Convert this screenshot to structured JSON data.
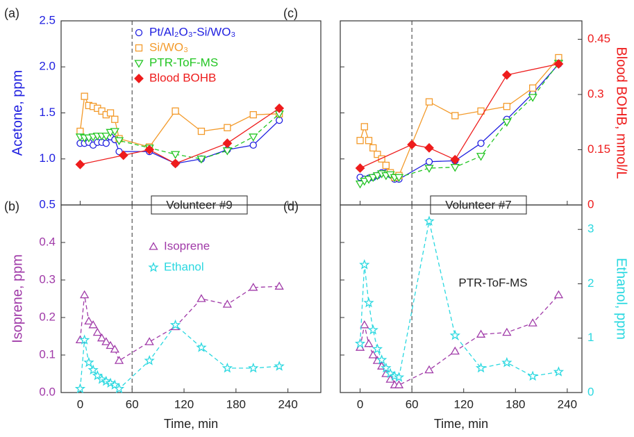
{
  "chart_data": [
    {
      "type": "line",
      "label": "(a)",
      "ylabel": "Acetone, ppm",
      "ycolor": "#1f1fe0",
      "xlim": [
        -22,
        278
      ],
      "xticks": [
        0,
        60,
        120,
        180,
        240
      ],
      "show_xtick_labels": false,
      "ylim": [
        0.5,
        2.5
      ],
      "yticks": [
        0.5,
        {
          "value": 1,
          "label": "1.0"
        },
        1.5,
        {
          "value": 2,
          "label": "2.0"
        },
        2.5
      ],
      "show_ytick_labels": true,
      "vline_x": 60,
      "box_annotation": "Volunteer #9",
      "legend": "upper center",
      "series": [
        {
          "name": "Pt/Al₂O₃-Si/WO₃",
          "color": "#1f1fe0",
          "marker": "circle",
          "dashed": false,
          "x": [
            0,
            5,
            10,
            15,
            20,
            25,
            30,
            35,
            40,
            45,
            80,
            110,
            140,
            170,
            200,
            230
          ],
          "values": [
            1.17,
            1.17,
            1.18,
            1.15,
            1.18,
            1.18,
            1.17,
            1.24,
            1.21,
            1.08,
            1.08,
            0.95,
            1.0,
            1.1,
            1.15,
            1.42
          ]
        },
        {
          "name": "Si/WO₃",
          "color": "#f39a2a",
          "marker": "square",
          "dashed": false,
          "x": [
            0,
            5,
            10,
            15,
            20,
            25,
            30,
            35,
            40,
            45,
            80,
            110,
            140,
            170,
            200,
            230
          ],
          "values": [
            1.3,
            1.68,
            1.58,
            1.57,
            1.55,
            1.52,
            1.48,
            1.5,
            1.43,
            1.22,
            1.13,
            1.52,
            1.3,
            1.34,
            1.48,
            1.49
          ]
        },
        {
          "name": "PTR-ToF-MS",
          "color": "#22c522",
          "marker": "triangle-down",
          "dashed": true,
          "x": [
            0,
            5,
            10,
            15,
            20,
            25,
            30,
            35,
            40,
            45,
            80,
            110,
            140,
            170,
            200,
            230
          ],
          "values": [
            1.24,
            1.23,
            1.23,
            1.24,
            1.25,
            1.25,
            1.25,
            1.29,
            1.3,
            1.2,
            1.12,
            1.05,
            1.0,
            1.09,
            1.24,
            1.49
          ]
        },
        {
          "name": "Blood BOHB",
          "color": "#ee1c1c",
          "marker": "diamond",
          "dashed": false,
          "x": [
            0,
            50,
            80,
            110,
            170,
            230
          ],
          "values": [
            0.94,
            1.04,
            1.1,
            0.95,
            1.17,
            1.55
          ]
        }
      ]
    },
    {
      "type": "line",
      "label": "(b)",
      "xlabel": "Time, min",
      "ylabel": "Isoprene, ppm",
      "ycolor": "#a03aa8",
      "xlim": [
        -22,
        278
      ],
      "xticks": [
        0,
        60,
        120,
        180,
        240
      ],
      "show_xtick_labels": true,
      "ylim": [
        0,
        0.5
      ],
      "yticks": [
        {
          "value": 0,
          "label": "0.0"
        },
        0.1,
        0.2,
        0.3,
        0.4
      ],
      "show_ytick_labels": true,
      "vline_x": 60,
      "legend": "upper center",
      "series": [
        {
          "name": "Isoprene",
          "color": "#a03aa8",
          "marker": "triangle-up",
          "dashed": true,
          "x": [
            0,
            5,
            10,
            15,
            20,
            25,
            30,
            35,
            40,
            45,
            80,
            110,
            140,
            170,
            200,
            230
          ],
          "values": [
            0.14,
            0.26,
            0.19,
            0.18,
            0.16,
            0.145,
            0.135,
            0.125,
            0.115,
            0.085,
            0.135,
            0.175,
            0.25,
            0.235,
            0.28,
            0.283
          ]
        },
        {
          "name": "Ethanol",
          "color": "#2ad8e0",
          "marker": "star",
          "dashed": true,
          "x": [
            0,
            5,
            10,
            15,
            20,
            25,
            30,
            35,
            40,
            45,
            80,
            110,
            140,
            170,
            200,
            230
          ],
          "values": [
            0.01,
            0.14,
            0.08,
            0.06,
            0.045,
            0.035,
            0.03,
            0.025,
            0.02,
            0.01,
            0.085,
            0.18,
            0.12,
            0.065,
            0.065,
            0.07
          ]
        }
      ]
    },
    {
      "type": "line",
      "label": "(c)",
      "y2label": "Blood BOHB, mmol/L",
      "y2color": "#ee1c1c",
      "xlim": [
        -23,
        257
      ],
      "xticks": [
        0,
        60,
        120,
        180,
        240
      ],
      "show_xtick_labels": false,
      "ylim": [
        0.5,
        2.5
      ],
      "yticks": [
        0.5,
        1,
        1.5,
        2,
        2.5
      ],
      "show_ytick_labels": false,
      "y2lim": [
        0,
        0.5
      ],
      "y2ticks": [
        0,
        0.15,
        0.3,
        0.45
      ],
      "vline_x": 60,
      "box_annotation": "Volunteer #7",
      "series": [
        {
          "name": "Pt/Al₂O₃-Si/WO₃",
          "color": "#1f1fe0",
          "marker": "circle",
          "dashed": false,
          "x": [
            0,
            5,
            10,
            15,
            20,
            25,
            30,
            35,
            40,
            45,
            80,
            110,
            140,
            170,
            200,
            230
          ],
          "values": [
            0.8,
            0.78,
            0.79,
            0.8,
            0.82,
            0.85,
            0.85,
            0.83,
            0.78,
            0.78,
            0.97,
            0.98,
            1.17,
            1.43,
            1.71,
            2.03
          ]
        },
        {
          "name": "Si/WO₃",
          "color": "#f39a2a",
          "marker": "square",
          "dashed": false,
          "x": [
            0,
            5,
            10,
            15,
            20,
            25,
            30,
            35,
            40,
            45,
            80,
            110,
            140,
            170,
            200,
            230
          ],
          "values": [
            1.2,
            1.35,
            1.2,
            1.12,
            1.05,
            1.0,
            0.93,
            0.85,
            0.8,
            0.82,
            1.62,
            1.47,
            1.52,
            1.57,
            1.77,
            2.1
          ]
        },
        {
          "name": "PTR-ToF-MS",
          "color": "#22c522",
          "marker": "triangle-down",
          "dashed": true,
          "x": [
            0,
            5,
            10,
            15,
            20,
            25,
            30,
            35,
            40,
            45,
            80,
            110,
            140,
            170,
            200,
            230
          ],
          "values": [
            0.73,
            0.76,
            0.78,
            0.8,
            0.82,
            0.84,
            0.82,
            0.83,
            0.8,
            0.8,
            0.9,
            0.91,
            1.03,
            1.4,
            1.67,
            2.04
          ]
        },
        {
          "name": "Blood BOHB",
          "color": "#ee1c1c",
          "marker": "diamond",
          "dashed": false,
          "axis": "y2",
          "x": [
            0,
            60,
            80,
            110,
            170,
            230
          ],
          "values": [
            0.1,
            0.164,
            0.155,
            0.123,
            0.353,
            0.383
          ]
        }
      ]
    },
    {
      "type": "line",
      "label": "(d)",
      "xlabel": "Time, min",
      "y2label": "Ethanol, ppm",
      "y2color": "#2ad8e0",
      "xlim": [
        -23,
        257
      ],
      "xticks": [
        0,
        60,
        120,
        180,
        240
      ],
      "show_xtick_labels": true,
      "ylim": [
        0,
        0.5
      ],
      "yticks": [
        0,
        0.1,
        0.2,
        0.3,
        0.4
      ],
      "show_ytick_labels": false,
      "y2lim": [
        0,
        3.45
      ],
      "y2ticks": [
        0,
        1,
        2,
        3
      ],
      "vline_x": 60,
      "annotation": "PTR-ToF-MS",
      "series": [
        {
          "name": "Isoprene",
          "color": "#a03aa8",
          "marker": "triangle-up",
          "dashed": true,
          "x": [
            0,
            5,
            10,
            15,
            20,
            25,
            30,
            35,
            40,
            45,
            80,
            110,
            140,
            170,
            200,
            230
          ],
          "values": [
            0.12,
            0.18,
            0.13,
            0.1,
            0.085,
            0.07,
            0.05,
            0.035,
            0.02,
            0.02,
            0.06,
            0.11,
            0.155,
            0.16,
            0.185,
            0.26
          ]
        },
        {
          "name": "Ethanol",
          "color": "#2ad8e0",
          "marker": "star",
          "dashed": true,
          "axis": "y2",
          "x": [
            0,
            5,
            10,
            15,
            20,
            25,
            30,
            35,
            40,
            45,
            80,
            110,
            140,
            170,
            200,
            230
          ],
          "values": [
            0.9,
            2.35,
            1.65,
            1.15,
            0.8,
            0.6,
            0.45,
            0.35,
            0.3,
            0.28,
            3.15,
            1.05,
            0.45,
            0.55,
            0.3,
            0.38
          ]
        }
      ]
    }
  ]
}
